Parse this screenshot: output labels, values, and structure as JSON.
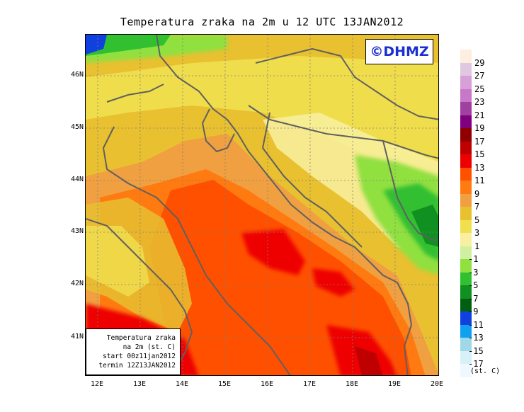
{
  "title": "Temperatura zraka na 2m u 12 UTC 13JAN2012",
  "brand": "©DHMZ",
  "info_box": {
    "line1": "Temperatura zraka",
    "line2": "na 2m (st. C)",
    "line3": "start 00z11jan2012",
    "line4": "termin 12Z13JAN2012"
  },
  "lat_labels": [
    "46N",
    "45N",
    "44N",
    "43N",
    "42N",
    "41N"
  ],
  "lon_labels": [
    "12E",
    "13E",
    "14E",
    "15E",
    "16E",
    "17E",
    "18E",
    "19E",
    "20E"
  ],
  "legend": {
    "unit": "(st. C)",
    "labels": [
      "29",
      "27",
      "25",
      "23",
      "21",
      "19",
      "17",
      "15",
      "13",
      "11",
      "9",
      "7",
      "5",
      "3",
      "1",
      "-1",
      "-3",
      "-5",
      "-7",
      "-9",
      "-11",
      "-13",
      "-15",
      "-17"
    ],
    "colors": [
      "#fdeee0",
      "#e0c8e0",
      "#d8a0d8",
      "#c878c8",
      "#a040a0",
      "#800080",
      "#900000",
      "#c00000",
      "#ee0000",
      "#ff5000",
      "#ff7a10",
      "#f0a040",
      "#e8c030",
      "#f0e050",
      "#f8f0a0",
      "#d0f0a0",
      "#90e040",
      "#30c030",
      "#109020",
      "#006010",
      "#1040e0",
      "#10a0f0",
      "#a0d8e8",
      "#d8f0f8",
      "#f0f8ff"
    ]
  },
  "colors": {
    "brand_text": "#1a2fd0",
    "coastline": "#606060",
    "grid": "#808080"
  }
}
